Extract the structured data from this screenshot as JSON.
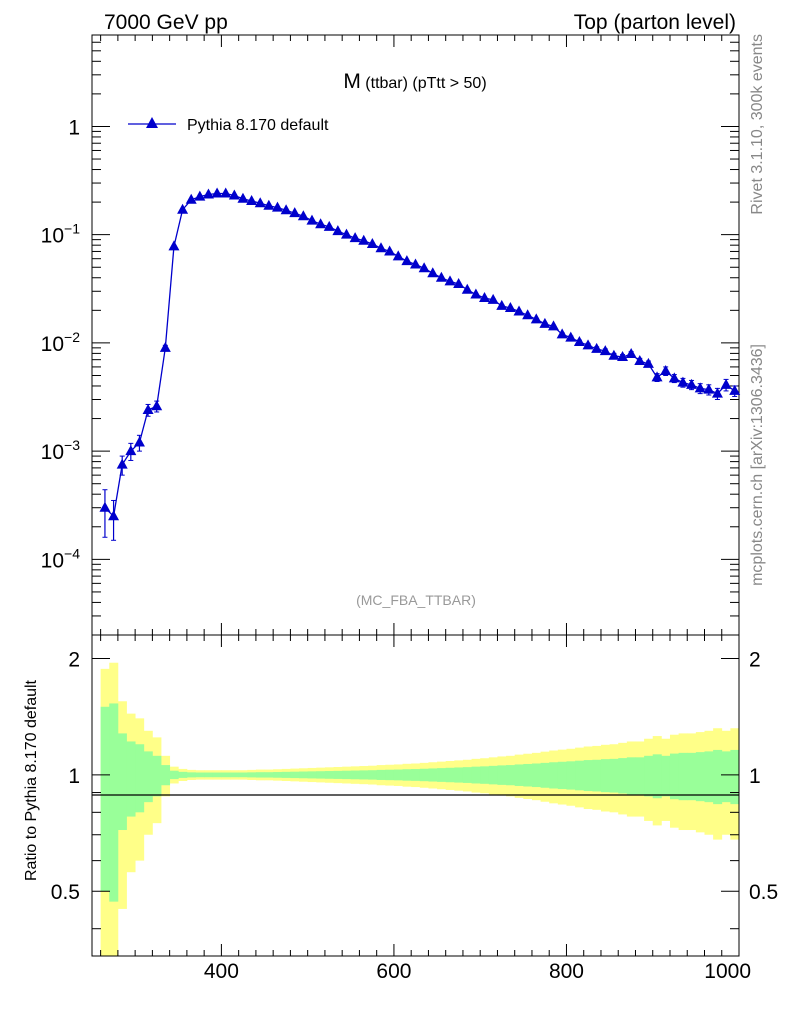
{
  "header": {
    "left": "7000 GeV pp",
    "right": "Top (parton level)"
  },
  "side_labels": {
    "rivet": "Rivet 3.1.10,  300k events",
    "source": "mcplots.cern.ch [arXiv:1306.3436]"
  },
  "colors": {
    "series": "#0000cc",
    "green_band": "#99ff99",
    "yellow_band": "#ffff88",
    "axis": "#000000",
    "grey_text": "#888888"
  },
  "chart_data": [
    {
      "type": "line",
      "title_main": "M",
      "title_sub": " (ttbar) (pTtt > 50)",
      "analysis_label": "(MC_FBA_TTBAR)",
      "yscale": "log",
      "ylim": [
        2e-05,
        7
      ],
      "xlim": [
        250,
        1000
      ],
      "y_ticks": [
        {
          "value": 1,
          "mantissa": "1",
          "exp": ""
        },
        {
          "value": 0.1,
          "mantissa": "10",
          "exp": "−1"
        },
        {
          "value": 0.01,
          "mantissa": "10",
          "exp": "−2"
        },
        {
          "value": 0.001,
          "mantissa": "10",
          "exp": "−3"
        },
        {
          "value": 0.0001,
          "mantissa": "10",
          "exp": "−4"
        }
      ],
      "legend": {
        "label": "Pythia 8.170 default",
        "position": "top-left"
      },
      "series": [
        {
          "name": "Pythia 8.170 default",
          "marker": "triangle-up",
          "x": [
            265,
            275,
            285,
            295,
            305,
            315,
            325,
            335,
            345,
            355,
            365,
            375,
            385,
            395,
            405,
            415,
            425,
            435,
            445,
            455,
            465,
            475,
            485,
            495,
            505,
            515,
            525,
            535,
            545,
            555,
            565,
            575,
            585,
            595,
            605,
            615,
            625,
            635,
            645,
            655,
            665,
            675,
            685,
            695,
            705,
            715,
            725,
            735,
            745,
            755,
            765,
            775,
            785,
            795,
            805,
            815,
            825,
            835,
            845,
            855,
            865,
            875,
            885,
            895,
            905,
            915,
            925,
            935,
            945,
            955,
            965,
            975,
            985,
            995
          ],
          "y": [
            0.0003,
            0.00025,
            0.00075,
            0.001,
            0.0012,
            0.0024,
            0.0026,
            0.009,
            0.078,
            0.17,
            0.21,
            0.225,
            0.235,
            0.24,
            0.24,
            0.23,
            0.215,
            0.205,
            0.195,
            0.185,
            0.178,
            0.168,
            0.158,
            0.148,
            0.135,
            0.125,
            0.118,
            0.108,
            0.1,
            0.093,
            0.088,
            0.082,
            0.075,
            0.07,
            0.063,
            0.057,
            0.053,
            0.049,
            0.044,
            0.04,
            0.037,
            0.035,
            0.031,
            0.028,
            0.026,
            0.025,
            0.022,
            0.021,
            0.0195,
            0.018,
            0.0165,
            0.015,
            0.0142,
            0.012,
            0.0112,
            0.0102,
            0.0095,
            0.0088,
            0.0084,
            0.0076,
            0.0074,
            0.0079,
            0.0068,
            0.0064,
            0.0048,
            0.0055,
            0.0047,
            0.0043,
            0.0041,
            0.0038,
            0.0037,
            0.0034,
            0.0041,
            0.0036
          ],
          "yerr": [
            0.00014,
            0.0001,
            0.00015,
            0.00018,
            0.0002,
            0.0003,
            0.0003,
            0.0005,
            0.001,
            0.001,
            0.001,
            0.001,
            0.001,
            0.001,
            0.001,
            0.001,
            0.001,
            0.001,
            0.001,
            0.001,
            0.001,
            0.001,
            0.001,
            0.001,
            0.001,
            0.001,
            0.001,
            0.001,
            0.001,
            0.001,
            0.001,
            0.001,
            0.001,
            0.001,
            0.0008,
            0.0008,
            0.0008,
            0.0007,
            0.0007,
            0.0006,
            0.0006,
            0.0006,
            0.0005,
            0.0005,
            0.0005,
            0.0005,
            0.0004,
            0.0004,
            0.0004,
            0.0004,
            0.0004,
            0.0004,
            0.0004,
            0.0004,
            0.0004,
            0.0004,
            0.0004,
            0.0004,
            0.0004,
            0.0004,
            0.0004,
            0.0004,
            0.0004,
            0.0004,
            0.0004,
            0.0005,
            0.0004,
            0.0004,
            0.0004,
            0.0004,
            0.0004,
            0.0004,
            0.0005,
            0.0004
          ]
        }
      ]
    },
    {
      "type": "area",
      "ylabel": "Ratio to Pythia 8.170 default",
      "xlim": [
        250,
        1000
      ],
      "ylim": [
        0.34,
        2.3
      ],
      "yscale": "log",
      "x_ticks": [
        400,
        600,
        800,
        1000
      ],
      "y_ticks": [
        0.5,
        1,
        2
      ],
      "bin_edges": [
        260,
        270,
        280,
        290,
        300,
        310,
        320,
        330,
        340,
        350,
        360,
        370,
        380,
        390,
        400,
        410,
        420,
        430,
        440,
        450,
        460,
        470,
        480,
        490,
        500,
        510,
        520,
        530,
        540,
        550,
        560,
        570,
        580,
        590,
        600,
        610,
        620,
        630,
        640,
        650,
        660,
        670,
        680,
        690,
        700,
        710,
        720,
        730,
        740,
        750,
        760,
        770,
        780,
        790,
        800,
        810,
        820,
        830,
        840,
        850,
        860,
        870,
        880,
        890,
        900,
        910,
        920,
        930,
        940,
        950,
        960,
        970,
        980,
        990,
        1000
      ],
      "green_rel": [
        0.5,
        0.53,
        0.28,
        0.22,
        0.2,
        0.15,
        0.12,
        0.06,
        0.025,
        0.018,
        0.015,
        0.014,
        0.014,
        0.014,
        0.014,
        0.014,
        0.014,
        0.015,
        0.016,
        0.016,
        0.017,
        0.018,
        0.019,
        0.02,
        0.021,
        0.022,
        0.023,
        0.024,
        0.025,
        0.026,
        0.027,
        0.028,
        0.03,
        0.031,
        0.032,
        0.034,
        0.035,
        0.037,
        0.039,
        0.041,
        0.043,
        0.045,
        0.047,
        0.05,
        0.052,
        0.055,
        0.058,
        0.06,
        0.064,
        0.067,
        0.07,
        0.074,
        0.078,
        0.081,
        0.084,
        0.088,
        0.092,
        0.094,
        0.098,
        0.1,
        0.105,
        0.11,
        0.11,
        0.12,
        0.13,
        0.12,
        0.135,
        0.14,
        0.14,
        0.145,
        0.15,
        0.16,
        0.15,
        0.16
      ],
      "yellow_rel": [
        0.88,
        0.95,
        0.55,
        0.44,
        0.4,
        0.3,
        0.25,
        0.12,
        0.05,
        0.036,
        0.03,
        0.028,
        0.028,
        0.028,
        0.028,
        0.028,
        0.028,
        0.03,
        0.032,
        0.032,
        0.034,
        0.036,
        0.038,
        0.04,
        0.042,
        0.044,
        0.046,
        0.048,
        0.05,
        0.052,
        0.054,
        0.056,
        0.06,
        0.062,
        0.064,
        0.068,
        0.07,
        0.074,
        0.078,
        0.082,
        0.086,
        0.09,
        0.094,
        0.1,
        0.104,
        0.11,
        0.116,
        0.12,
        0.128,
        0.134,
        0.14,
        0.148,
        0.156,
        0.162,
        0.168,
        0.176,
        0.184,
        0.188,
        0.196,
        0.2,
        0.21,
        0.22,
        0.22,
        0.24,
        0.26,
        0.24,
        0.27,
        0.28,
        0.28,
        0.29,
        0.3,
        0.32,
        0.3,
        0.32
      ]
    }
  ]
}
